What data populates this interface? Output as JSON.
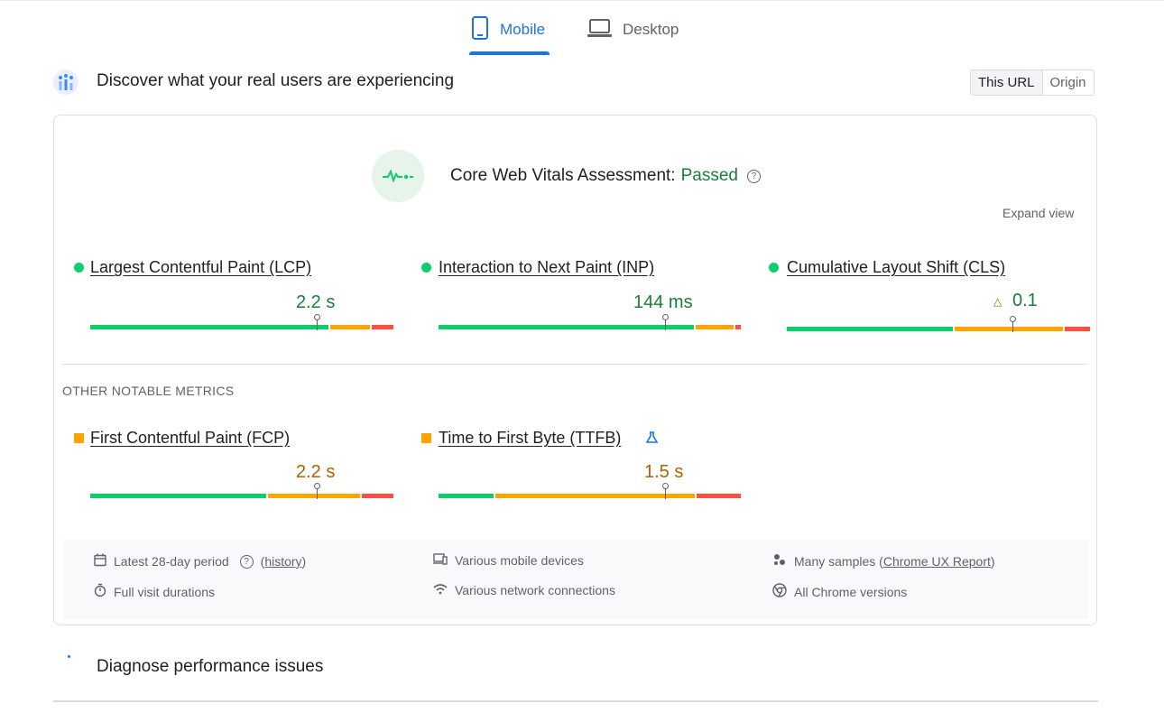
{
  "tabs": {
    "mobile": "Mobile",
    "desktop": "Desktop"
  },
  "section": {
    "title": "Discover what your real users are experiencing",
    "toggle": {
      "this_url": "This URL",
      "origin": "Origin"
    }
  },
  "assessment": {
    "label": "Core Web Vitals Assessment:",
    "status": "Passed",
    "expand": "Expand view"
  },
  "core_metrics": {
    "lcp": {
      "name": "Largest Contentful Paint (LCP)",
      "value": "2.2 s",
      "status": "good",
      "marker_fraction": 0.75
    },
    "inp": {
      "name": "Interaction to Next Paint (INP)",
      "value": "144 ms",
      "status": "good",
      "marker_fraction": 0.75
    },
    "cls": {
      "name": "Cumulative Layout Shift (CLS)",
      "value": "0.1",
      "status": "good",
      "marker_fraction": 0.75
    }
  },
  "other_heading": "OTHER NOTABLE METRICS",
  "other_metrics": {
    "fcp": {
      "name": "First Contentful Paint (FCP)",
      "value": "2.2 s",
      "status": "needs-improvement",
      "marker_fraction": 0.75
    },
    "ttfb": {
      "name": "Time to First Byte (TTFB)",
      "value": "1.5 s",
      "status": "needs-improvement",
      "marker_fraction": 0.75
    }
  },
  "info": {
    "period": "Latest 28-day period",
    "history": "history",
    "durations": "Full visit durations",
    "devices": "Various mobile devices",
    "network": "Various network connections",
    "samples": "Many samples",
    "crux": "Chrome UX Report",
    "versions": "All Chrome versions"
  },
  "diagnose": {
    "title": "Diagnose performance issues"
  },
  "colors": {
    "good": "#0cce6b",
    "average": "#ffa400",
    "poor": "#ff4e42",
    "accent": "#1a73e8"
  }
}
